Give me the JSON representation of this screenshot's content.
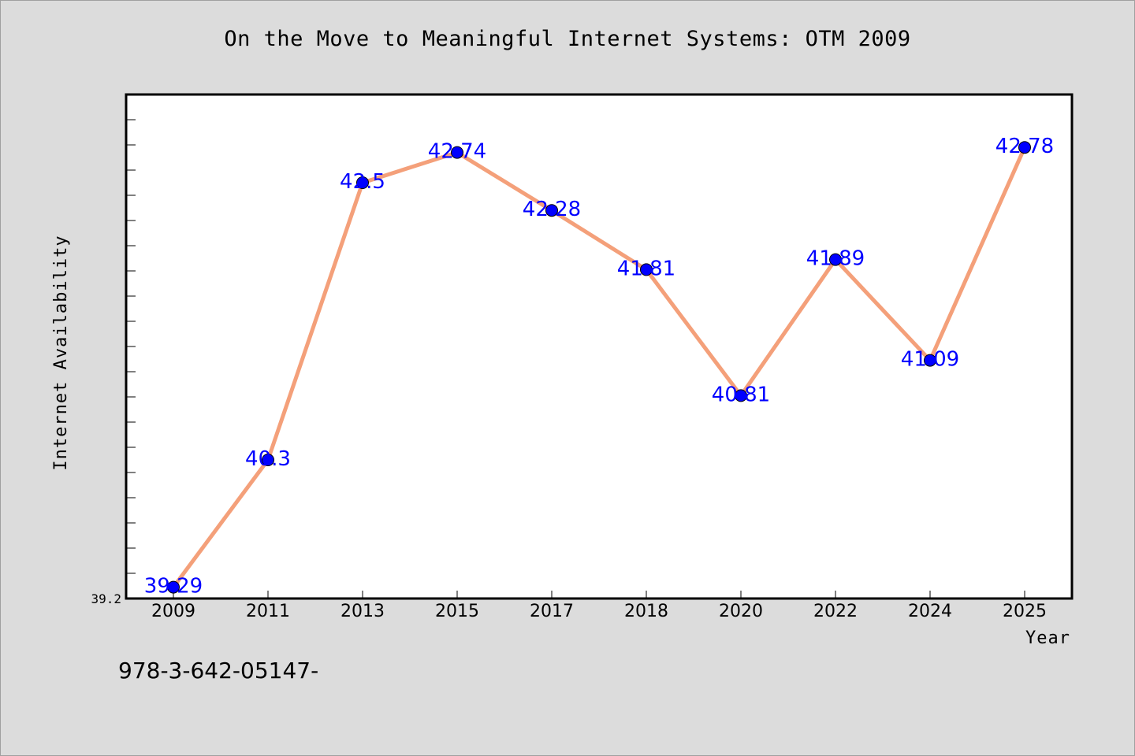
{
  "colors": {
    "background": "#dcdcdc",
    "plot_background": "#ffffff",
    "line": "#f4a07a",
    "marker": "#0000ff",
    "data_label": "#0000ff"
  },
  "footer": {
    "isbn": "978-3-642-05147-"
  },
  "chart_data": {
    "type": "line",
    "title": "On the Move to Meaningful Internet Systems: OTM 2009",
    "xlabel": "Year",
    "ylabel": "Internet Availability",
    "categories": [
      "2009",
      "2011",
      "2013",
      "2015",
      "2017",
      "2018",
      "2020",
      "2022",
      "2024",
      "2025"
    ],
    "series": [
      {
        "values": [
          39.29,
          40.3,
          42.5,
          42.74,
          42.28,
          41.81,
          40.81,
          41.89,
          41.09,
          42.78
        ],
        "data_labels": [
          "39.29",
          "40.3",
          "42.5",
          "42.74",
          "42.28",
          "41.81",
          "40.81",
          "41.89",
          "41.09",
          "42.78"
        ]
      }
    ],
    "y_tick_labels": [
      "39.2"
    ],
    "ylim": [
      39.2,
      43.2
    ],
    "grid": false,
    "legend": "none"
  }
}
